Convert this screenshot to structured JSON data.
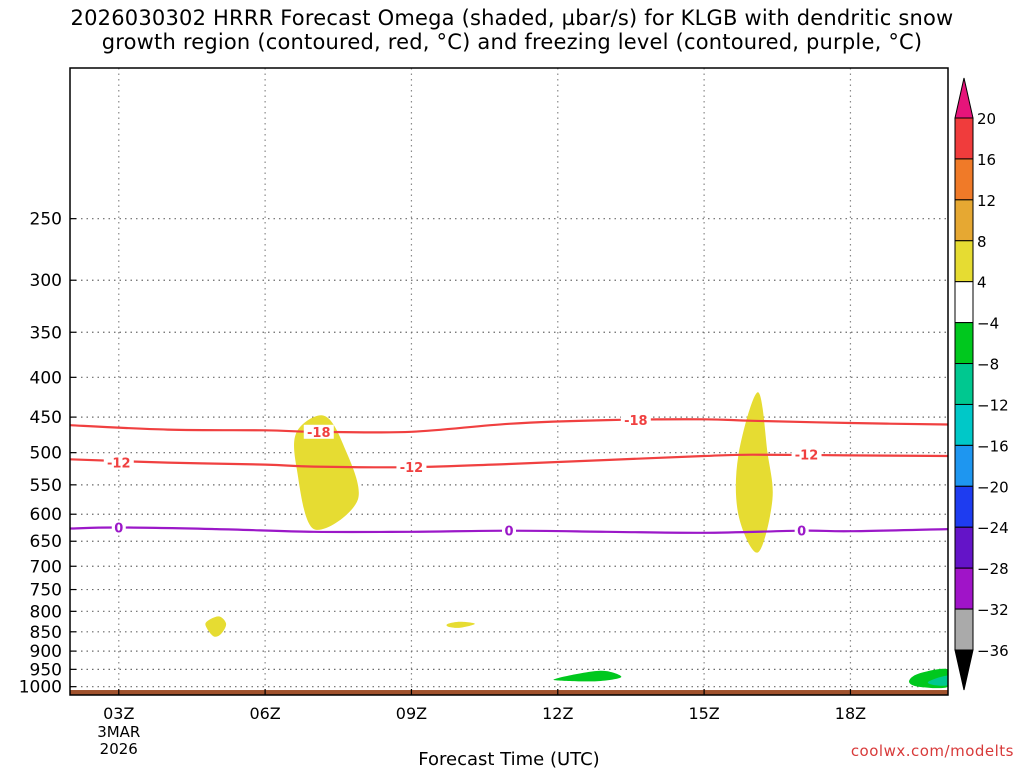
{
  "title_line1": "2026030302 HRRR Forecast Omega (shaded, µbar/s) for KLGB with dendritic snow",
  "title_line2": "growth region (contoured, red, °C) and freezing level (contoured, purple, °C)",
  "credit": "coolwx.com/modelts",
  "chart_data": {
    "type": "heatmap",
    "title": "2026030302 HRRR Forecast Omega (shaded, µbar/s) for KLGB with dendritic snow growth region (contoured, red, °C) and freezing level (contoured, purple, °C)",
    "xlabel": "Forecast Time (UTC)",
    "ylabel": "",
    "x_range_hours": [
      2,
      20
    ],
    "y_range_hpa": [
      1025,
      160
    ],
    "y_scale": "log-pressure",
    "grid": true,
    "x_ticks": [
      {
        "hour": 3,
        "label": "03Z",
        "sublabel1": "3MAR",
        "sublabel2": "2026"
      },
      {
        "hour": 6,
        "label": "06Z"
      },
      {
        "hour": 9,
        "label": "09Z"
      },
      {
        "hour": 12,
        "label": "12Z"
      },
      {
        "hour": 15,
        "label": "15Z"
      },
      {
        "hour": 18,
        "label": "18Z"
      }
    ],
    "y_ticks": [
      250,
      300,
      350,
      400,
      450,
      500,
      550,
      600,
      650,
      700,
      750,
      800,
      850,
      900,
      950,
      1000
    ],
    "contours": [
      {
        "label": "-18",
        "color": "#f04040",
        "points": [
          [
            2,
            461
          ],
          [
            4,
            467
          ],
          [
            6,
            468
          ],
          [
            7,
            470
          ],
          [
            9,
            470
          ],
          [
            11,
            459
          ],
          [
            13,
            454
          ],
          [
            15,
            453
          ],
          [
            16,
            455
          ],
          [
            18,
            458
          ],
          [
            20,
            460
          ]
        ],
        "label_at": [
          [
            7.1,
            470
          ],
          [
            13.6,
            454
          ]
        ]
      },
      {
        "label": "-12",
        "color": "#f04040",
        "points": [
          [
            2,
            510
          ],
          [
            4,
            515
          ],
          [
            6,
            518
          ],
          [
            7,
            521
          ],
          [
            9,
            522
          ],
          [
            11,
            517
          ],
          [
            13,
            511
          ],
          [
            15,
            505
          ],
          [
            16,
            503
          ],
          [
            18,
            504
          ],
          [
            20,
            505
          ]
        ],
        "label_at": [
          [
            3.0,
            515
          ],
          [
            9.0,
            522
          ],
          [
            17.1,
            503
          ]
        ]
      },
      {
        "label": "0",
        "color": "#9b18c8",
        "points": [
          [
            2,
            626
          ],
          [
            3,
            624
          ],
          [
            5,
            627
          ],
          [
            7,
            632
          ],
          [
            9,
            632
          ],
          [
            11,
            630
          ],
          [
            13,
            632
          ],
          [
            15,
            634
          ],
          [
            17,
            630
          ],
          [
            18,
            631
          ],
          [
            20,
            627
          ]
        ],
        "label_at": [
          [
            3.0,
            624
          ],
          [
            11.0,
            630
          ],
          [
            17.0,
            630
          ]
        ]
      }
    ],
    "shaded_regions": [
      {
        "range": "4 to 8",
        "color": "#e6dc32",
        "points": [
          [
            6.65,
            470
          ],
          [
            7.2,
            448
          ],
          [
            7.6,
            488
          ],
          [
            7.9,
            575
          ],
          [
            7.0,
            627
          ],
          [
            6.65,
            525
          ]
        ]
      },
      {
        "range": "4 to 8",
        "color": "#e6dc32",
        "points": [
          [
            15.7,
            505
          ],
          [
            16.1,
            418
          ],
          [
            16.3,
            500
          ],
          [
            16.4,
            575
          ],
          [
            16.1,
            672
          ],
          [
            15.7,
            600
          ]
        ]
      },
      {
        "range": "4 to 8",
        "color": "#e6dc32",
        "points": [
          [
            4.8,
            825
          ],
          [
            5.05,
            812
          ],
          [
            5.2,
            830
          ],
          [
            5.1,
            855
          ],
          [
            4.95,
            862
          ],
          [
            4.8,
            840
          ]
        ]
      },
      {
        "range": "4 to 8",
        "color": "#e6dc32",
        "points": [
          [
            9.75,
            830
          ],
          [
            10.0,
            825
          ],
          [
            10.3,
            830
          ],
          [
            10.0,
            840
          ],
          [
            9.75,
            837
          ]
        ]
      },
      {
        "range": "-8 to -4",
        "color": "#00c81e",
        "points": [
          [
            12,
            975
          ],
          [
            12.6,
            958
          ],
          [
            13.0,
            955
          ],
          [
            13.3,
            972
          ],
          [
            12.8,
            984
          ],
          [
            12,
            982
          ]
        ]
      },
      {
        "range": "-8 to -4",
        "color": "#00c81e",
        "points": [
          [
            19.2,
            985
          ],
          [
            19.4,
            962
          ],
          [
            20,
            950
          ],
          [
            20,
            1000
          ],
          [
            19.4,
            1000
          ]
        ]
      },
      {
        "range": "-12 to -8",
        "color": "#00c890",
        "points": [
          [
            19.6,
            985
          ],
          [
            20,
            968
          ],
          [
            20,
            995
          ],
          [
            19.7,
            995
          ]
        ]
      }
    ],
    "ground": {
      "color": "#a0522d",
      "top_hpa": 1010
    },
    "colorbar": [
      {
        "range": [
          16,
          20
        ],
        "color": "#f03c3c"
      },
      {
        "range": [
          12,
          16
        ],
        "color": "#f07a28"
      },
      {
        "range": [
          8,
          12
        ],
        "color": "#e6a832"
      },
      {
        "range": [
          4,
          8
        ],
        "color": "#e6dc32"
      },
      {
        "range": [
          -4,
          4
        ],
        "color": "#ffffff"
      },
      {
        "range": [
          -8,
          -4
        ],
        "color": "#00c81e"
      },
      {
        "range": [
          -12,
          -8
        ],
        "color": "#00c890"
      },
      {
        "range": [
          -16,
          -12
        ],
        "color": "#00c8c8"
      },
      {
        "range": [
          -20,
          -16
        ],
        "color": "#1e96f0"
      },
      {
        "range": [
          -24,
          -20
        ],
        "color": "#1e3cf0"
      },
      {
        "range": [
          -28,
          -24
        ],
        "color": "#6414c8"
      },
      {
        "range": [
          -32,
          -28
        ],
        "color": "#a014c8"
      },
      {
        "range": [
          -36,
          -32
        ],
        "color": "#aaaaaa"
      }
    ],
    "colorbar_over_color": "#e6147a",
    "colorbar_under_color": "#000000",
    "colorbar_labels": [
      "20",
      "16",
      "12",
      "8",
      "4",
      "−4",
      "−8",
      "−12",
      "−16",
      "−20",
      "−24",
      "−28",
      "−32",
      "−36"
    ]
  }
}
